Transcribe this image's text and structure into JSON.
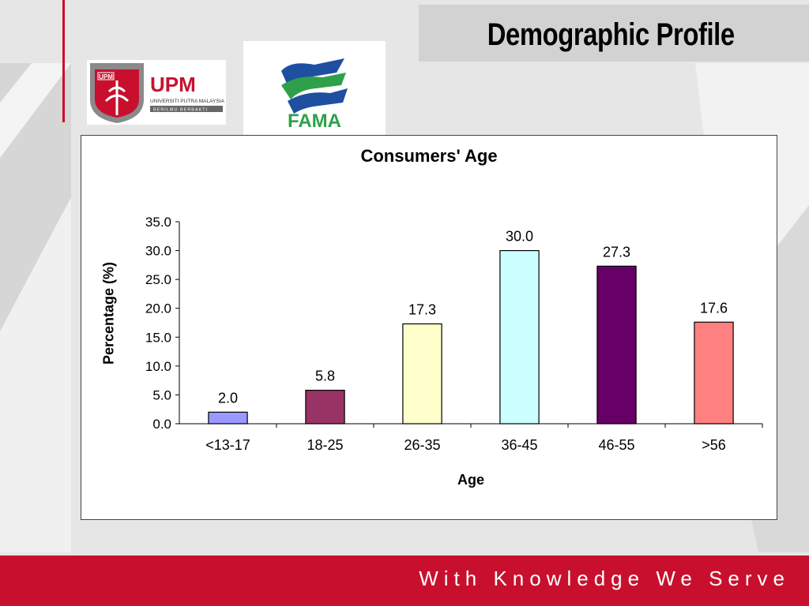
{
  "slide": {
    "title": "Demographic Profile",
    "footer_text": "With Knowledge We Serve"
  },
  "logos": {
    "upm": {
      "mark": "UPM",
      "text": "UPM",
      "subtitle": "UNIVERSITI PUTRA MALAYSIA",
      "motto": "BERILMU BERBAKTI"
    },
    "fama": {
      "text": "FAMA"
    }
  },
  "colors": {
    "brand_red": "#c8102e",
    "fama_blue": "#1e4fa0",
    "fama_green": "#2fa04a"
  },
  "chart_data": {
    "type": "bar",
    "title": "Consumers' Age",
    "xlabel": "Age",
    "ylabel": "Percentage (%)",
    "categories": [
      "<13-17",
      "18-25",
      "26-35",
      "36-45",
      "46-55",
      ">56"
    ],
    "values": [
      2.0,
      5.8,
      17.3,
      30.0,
      27.3,
      17.6
    ],
    "value_labels": [
      "2.0",
      "5.8",
      "17.3",
      "30.0",
      "27.3",
      "17.6"
    ],
    "colors": [
      "#9999ff",
      "#993366",
      "#ffffcc",
      "#ccffff",
      "#660066",
      "#ff8080"
    ],
    "ylim": [
      0,
      35
    ],
    "yticks": [
      "0.0",
      "5.0",
      "10.0",
      "15.0",
      "20.0",
      "25.0",
      "30.0",
      "35.0"
    ],
    "grid": false,
    "legend": "none"
  }
}
